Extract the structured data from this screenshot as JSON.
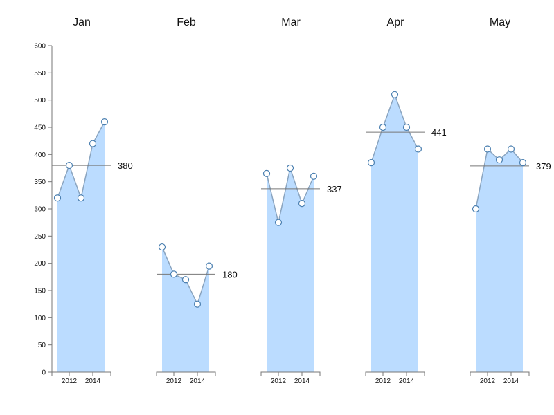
{
  "chart_data": {
    "type": "area",
    "layout": "small-multiples",
    "x": [
      2011,
      2012,
      2013,
      2014,
      2015
    ],
    "x_tick_labels": [
      "2012",
      "2014"
    ],
    "x_ticks": [
      2012,
      2014
    ],
    "y_ticks": [
      0,
      50,
      100,
      150,
      200,
      250,
      300,
      350,
      400,
      450,
      500,
      550,
      600
    ],
    "ylim": [
      0,
      600
    ],
    "grid": false,
    "colors": {
      "area": "#bbdcff",
      "line": "#8aa4bf",
      "point_stroke": "#4a7fb0",
      "avg_line": "#777777"
    },
    "panels": [
      {
        "title": "Jan",
        "values": [
          320,
          380,
          320,
          420,
          460
        ],
        "avg": 380,
        "avg_label": "380"
      },
      {
        "title": "Feb",
        "values": [
          230,
          180,
          170,
          125,
          195
        ],
        "avg": 180,
        "avg_label": "180"
      },
      {
        "title": "Mar",
        "values": [
          365,
          275,
          375,
          310,
          360
        ],
        "avg": 337,
        "avg_label": "337"
      },
      {
        "title": "Apr",
        "values": [
          385,
          450,
          510,
          450,
          410
        ],
        "avg": 441,
        "avg_label": "441"
      },
      {
        "title": "May",
        "values": [
          300,
          410,
          390,
          410,
          385
        ],
        "avg": 379,
        "avg_label": "379"
      }
    ]
  }
}
